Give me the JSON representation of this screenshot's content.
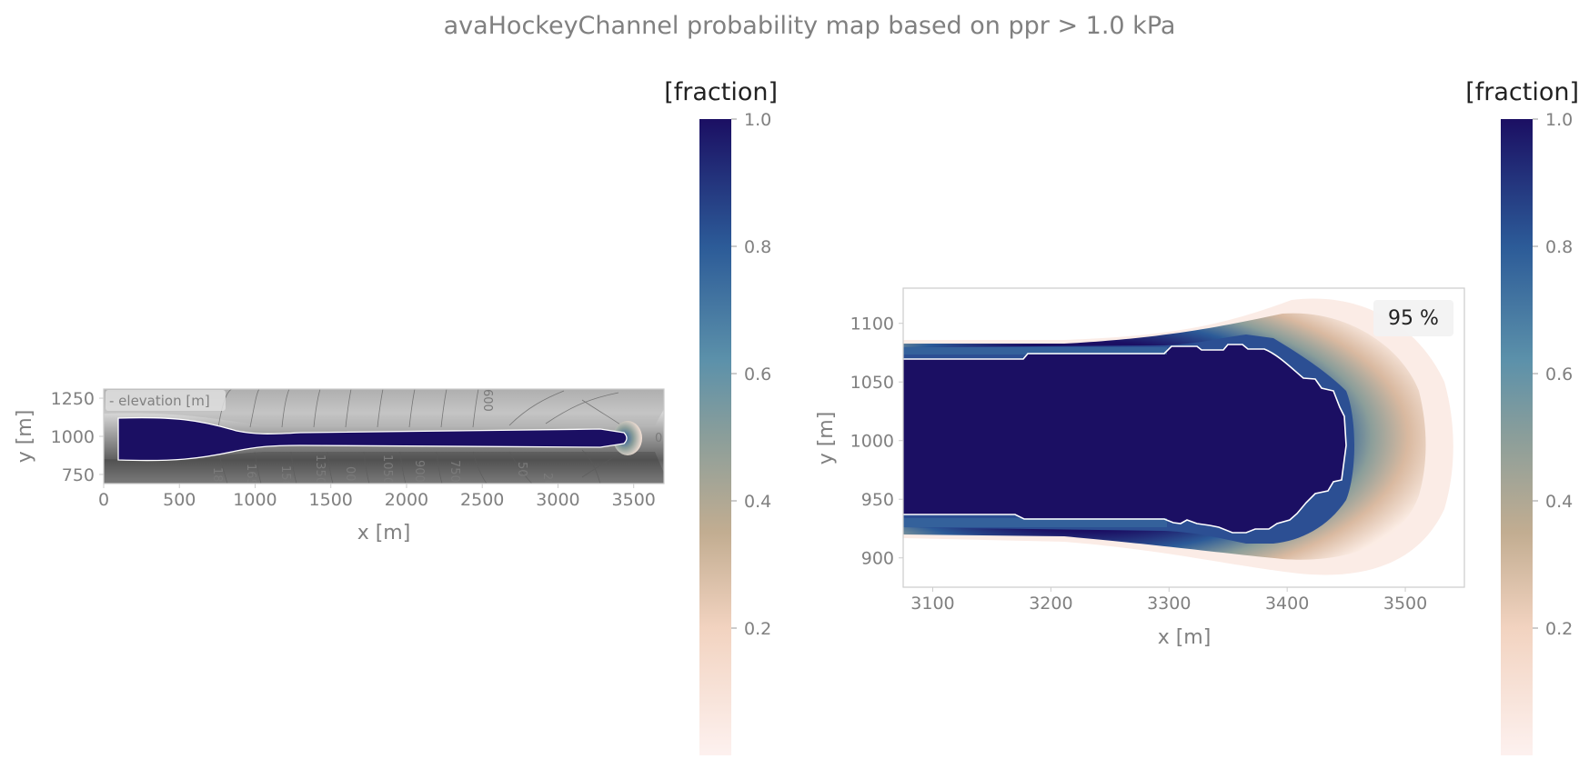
{
  "figure": {
    "title": "avaHockeyChannel probability map based on ppr $>$ 1.0 kPa",
    "title_display": "avaHockeyChannel probability map based on ppr  >  1.0 kPa"
  },
  "colors": {
    "text": "#808080",
    "axis_frame": "#cccccc",
    "hillshade_light": "#bdbdbd",
    "hillshade_dark": "#6e6e6e",
    "contour_line": "#5a5a5a",
    "prob_high": "#1b0f63",
    "prob_mid": "#6e9aa6",
    "prob_low": "#f6e1d6",
    "contour_95": "#ffffff"
  },
  "chart_data": [
    {
      "type": "heatmap",
      "panel": "overview",
      "xlabel": "x [m]",
      "ylabel": "y [m]",
      "xlim": [
        0,
        3700
      ],
      "ylim": [
        690,
        1310
      ],
      "xticks": [
        "0",
        "500",
        "1000",
        "1500",
        "2000",
        "2500",
        "3000",
        "3500"
      ],
      "yticks": [
        "750",
        "1000",
        "1250"
      ],
      "background_label": "- elevation [m]",
      "contour_labels": [
        "180",
        "1650",
        "150",
        "1350",
        "00",
        "1050",
        "900",
        "750",
        "50",
        "20",
        "0"
      ],
      "contour_label_top": "600",
      "colorbar": {
        "label": "[fraction]",
        "ticks": [
          "0.2",
          "0.4",
          "0.6",
          "0.8",
          "1.0"
        ],
        "range": [
          0.0,
          1.0
        ]
      }
    },
    {
      "type": "heatmap",
      "panel": "zoom",
      "xlabel": "x [m]",
      "ylabel": "y [m]",
      "xlim": [
        3075,
        3550
      ],
      "ylim": [
        875,
        1130
      ],
      "xticks": [
        "3100",
        "3200",
        "3300",
        "3400",
        "3500"
      ],
      "yticks": [
        "900",
        "950",
        "1000",
        "1050",
        "1100"
      ],
      "contour_annotation": "95 %",
      "colorbar": {
        "label": "[fraction]",
        "ticks": [
          "0.2",
          "0.4",
          "0.6",
          "0.8",
          "1.0"
        ],
        "range": [
          0.0,
          1.0
        ]
      }
    }
  ]
}
